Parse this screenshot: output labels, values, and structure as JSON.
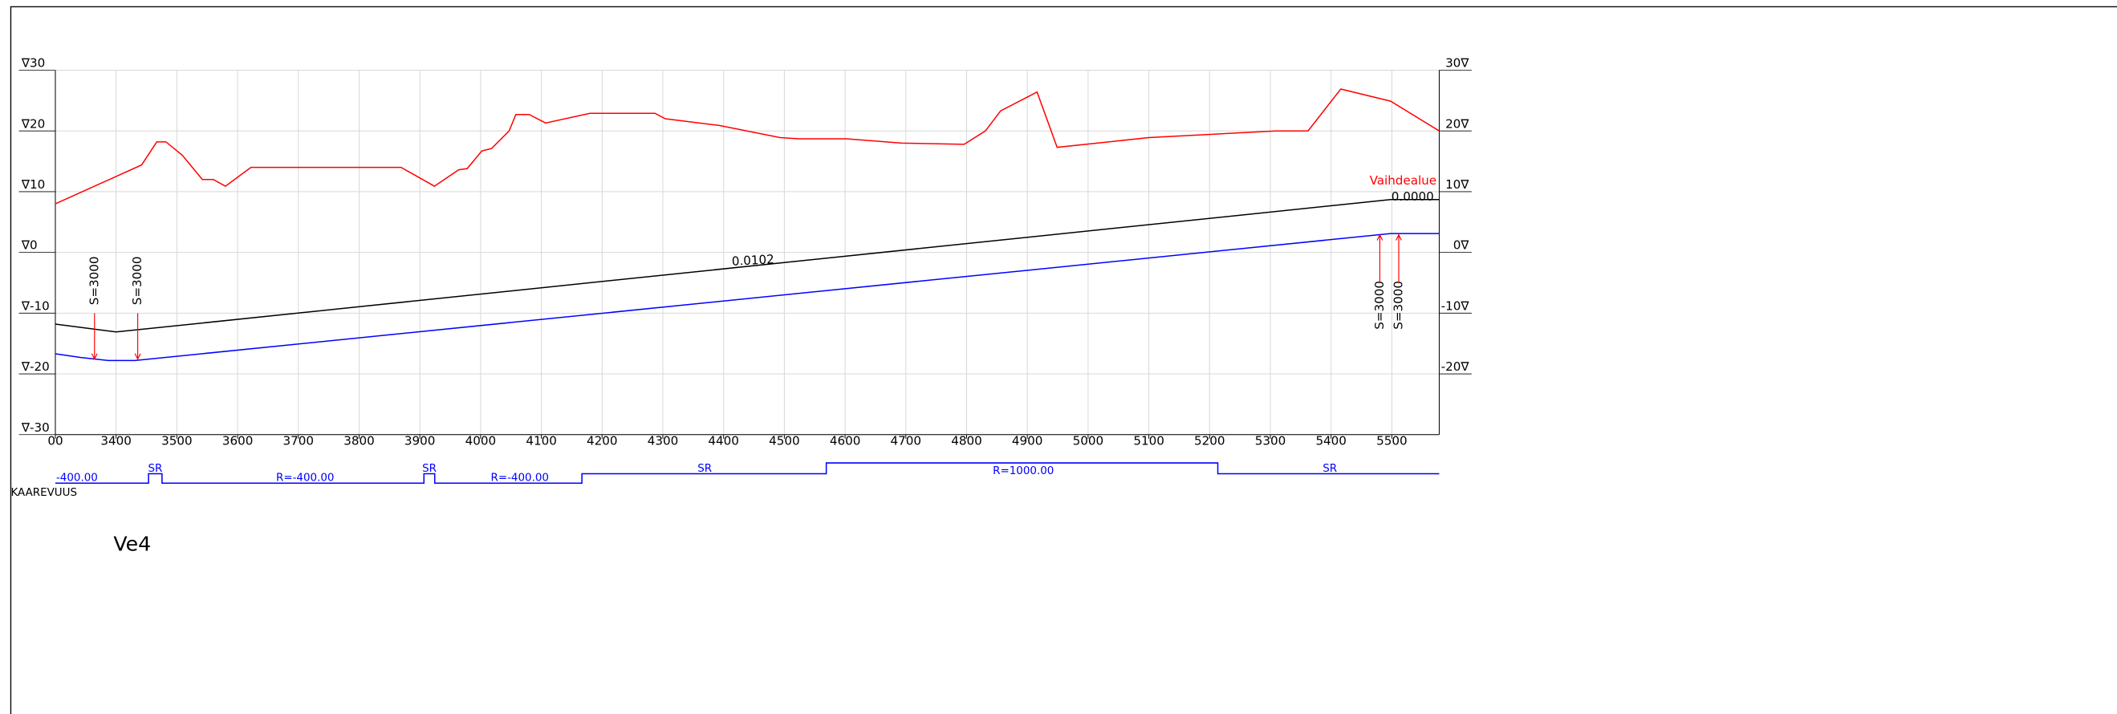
{
  "chart_data": {
    "type": "line",
    "xlim": [
      3300,
      5578
    ],
    "ylim": [
      -30,
      30
    ],
    "y2lim": [
      -30,
      30
    ],
    "grid": true,
    "xticks": [
      {
        "value": 3300,
        "label": "00"
      },
      3400,
      3500,
      3600,
      3700,
      3800,
      3900,
      4000,
      4100,
      4200,
      4300,
      4400,
      4500,
      4600,
      4700,
      4800,
      4900,
      5000,
      5100,
      5200,
      5300,
      5400,
      5500
    ],
    "yticks": [
      {
        "value": 30,
        "label": "∇30"
      },
      {
        "value": 20,
        "label": "∇20"
      },
      {
        "value": 10,
        "label": "∇10"
      },
      {
        "value": 0,
        "label": "∇0"
      },
      {
        "value": -10,
        "label": "∇-10"
      },
      {
        "value": -20,
        "label": "∇-20"
      },
      {
        "value": -30,
        "label": "∇-30"
      }
    ],
    "y2ticks": [
      {
        "value": 30,
        "label": "30∇"
      },
      {
        "value": 20,
        "label": "20∇"
      },
      {
        "value": 10,
        "label": "10∇"
      },
      {
        "value": 0,
        "label": "0∇"
      },
      {
        "value": -10,
        "label": "-10∇"
      },
      {
        "value": -20,
        "label": "-20∇"
      }
    ],
    "series": [
      {
        "color": "#ff0000",
        "x": [
          3300,
          3442,
          3467,
          3482,
          3509,
          3542,
          3560,
          3580,
          3622,
          3869,
          3924,
          3964,
          3978,
          4002,
          4018,
          4047,
          4058,
          4080,
          4107,
          4180,
          4287,
          4304,
          4393,
          4493,
          4524,
          4602,
          4693,
          4796,
          4831,
          4856,
          4916,
          4949,
          5100,
          5309,
          5362,
          5416,
          5498,
          5578
        ],
        "values": [
          8,
          14.4,
          18.2,
          18.2,
          16,
          12,
          12,
          10.9,
          14,
          14,
          10.9,
          13.6,
          13.8,
          16.7,
          17.1,
          20,
          22.7,
          22.7,
          21.3,
          22.9,
          22.9,
          22,
          20.9,
          18.9,
          18.7,
          18.7,
          18,
          17.8,
          20,
          23.3,
          26.4,
          17.3,
          18.9,
          20,
          20,
          26.9,
          24.9,
          20
        ]
      },
      {
        "color": "#000000",
        "x": [
          3300,
          3400,
          5498,
          5578
        ],
        "values": [
          -11.8,
          -13.1,
          8.7,
          8.7
        ]
      },
      {
        "color": "#0000ff",
        "x": [
          3300,
          3342,
          3387,
          3431,
          5498,
          5578
        ],
        "values": [
          -16.7,
          -17.3,
          -17.8,
          -17.8,
          3.1,
          3.1
        ]
      }
    ],
    "annotations": [
      "0.0102",
      "0.0000",
      "Vaihdealue",
      "S=3000",
      "S=3000",
      "S=3000",
      "S=3000"
    ],
    "curvature": {
      "label": "KAAREVUUS",
      "texts": [
        "-400.00",
        "SR",
        "R=-400.00",
        "SR",
        "R=-400.00",
        "SR",
        "R=1000.00",
        "SR"
      ]
    },
    "drawing_label": "Ve4"
  }
}
